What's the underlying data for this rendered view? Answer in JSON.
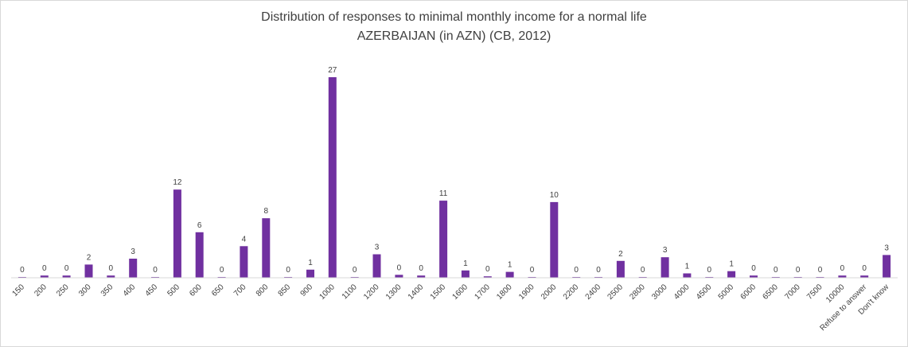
{
  "chart_data": {
    "type": "bar",
    "title": "Distribution of responses to minimal monthly income for a normal life",
    "subtitle": "AZERBAIJAN (in AZN) (CB, 2012)",
    "categories": [
      "150",
      "200",
      "250",
      "300",
      "350",
      "400",
      "450",
      "500",
      "600",
      "650",
      "700",
      "800",
      "850",
      "900",
      "1000",
      "1100",
      "1200",
      "1300",
      "1400",
      "1500",
      "1600",
      "1700",
      "1800",
      "1900",
      "2000",
      "2200",
      "2400",
      "2500",
      "2800",
      "3000",
      "4000",
      "4500",
      "5000",
      "6000",
      "6500",
      "7000",
      "7500",
      "10000",
      "Refuse to answer",
      "Don't know"
    ],
    "values": [
      0.1,
      0.3,
      0.3,
      1.8,
      0.3,
      2.6,
      0.1,
      12.0,
      6.2,
      0.1,
      4.3,
      8.1,
      0.1,
      1.1,
      27.3,
      0.1,
      3.2,
      0.4,
      0.3,
      10.5,
      1.0,
      0.2,
      0.8,
      0.1,
      10.3,
      0.1,
      0.1,
      2.3,
      0.1,
      2.8,
      0.6,
      0.1,
      0.9,
      0.3,
      0.1,
      0.1,
      0.1,
      0.3,
      0.3,
      3.1
    ],
    "labels": [
      "0",
      "0",
      "0",
      "2",
      "0",
      "3",
      "0",
      "12",
      "6",
      "0",
      "4",
      "8",
      "0",
      "1",
      "27",
      "0",
      "3",
      "0",
      "0",
      "11",
      "1",
      "0",
      "1",
      "0",
      "10",
      "0",
      "0",
      "2",
      "0",
      "3",
      "1",
      "0",
      "1",
      "0",
      "0",
      "0",
      "0",
      "0",
      "0",
      "3"
    ],
    "bar_color": "#7030a0",
    "axis_color": "#d9d9d9",
    "ylim": [
      0,
      27.3
    ],
    "grid": false,
    "legend": "none"
  }
}
